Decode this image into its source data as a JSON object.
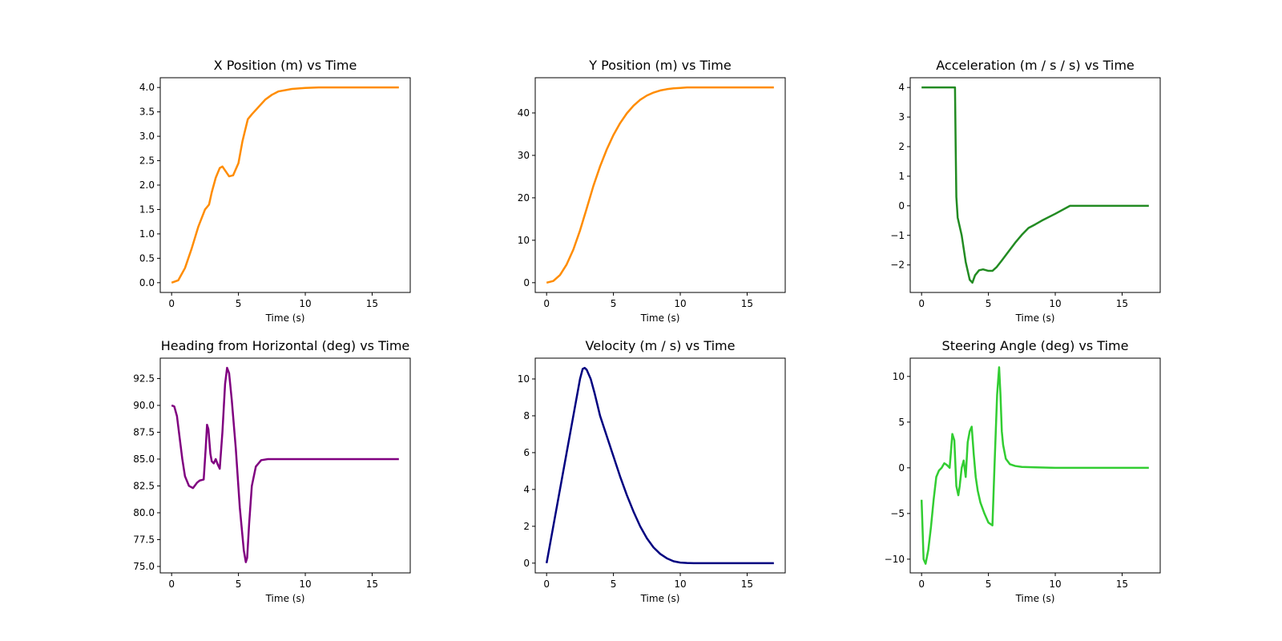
{
  "chart_data": [
    {
      "type": "line",
      "title": "X Position (m) vs Time",
      "xlabel": "Time (s)",
      "ylabel": "",
      "xlim": [
        -0.85,
        17.85
      ],
      "ylim": [
        -0.2,
        4.2
      ],
      "xticks": [
        0,
        5,
        10,
        15
      ],
      "yticks": [
        0.0,
        0.5,
        1.0,
        1.5,
        2.0,
        2.5,
        3.0,
        3.5,
        4.0
      ],
      "ytick_decimals": 1,
      "color": "#ff8c00",
      "x": [
        0,
        0.5,
        1,
        1.5,
        2,
        2.5,
        2.8,
        3.0,
        3.3,
        3.6,
        3.8,
        4.0,
        4.3,
        4.6,
        5.0,
        5.3,
        5.7,
        6.0,
        6.5,
        7,
        7.5,
        8,
        9,
        10,
        11,
        12,
        14,
        17
      ],
      "y": [
        0,
        0.05,
        0.3,
        0.7,
        1.15,
        1.5,
        1.6,
        1.85,
        2.15,
        2.35,
        2.38,
        2.3,
        2.18,
        2.2,
        2.45,
        2.9,
        3.35,
        3.45,
        3.6,
        3.75,
        3.85,
        3.92,
        3.97,
        3.99,
        4.0,
        4.0,
        4.0,
        4.0
      ]
    },
    {
      "type": "line",
      "title": "Y Position (m) vs Time",
      "xlabel": "Time (s)",
      "ylabel": "",
      "xlim": [
        -0.85,
        17.85
      ],
      "ylim": [
        -2.3,
        48.3
      ],
      "xticks": [
        0,
        5,
        10,
        15
      ],
      "yticks": [
        0,
        10,
        20,
        30,
        40
      ],
      "ytick_decimals": 0,
      "color": "#ff8c00",
      "x": [
        0,
        0.5,
        1,
        1.5,
        2,
        2.5,
        3,
        3.5,
        4,
        4.5,
        5,
        5.5,
        6,
        6.5,
        7,
        7.5,
        8,
        8.5,
        9,
        9.5,
        10,
        10.5,
        11,
        12,
        14,
        17
      ],
      "y": [
        0,
        0.4,
        1.8,
        4.3,
        7.8,
        12.3,
        17.5,
        22.8,
        27.4,
        31.4,
        34.8,
        37.6,
        39.9,
        41.7,
        43.1,
        44.1,
        44.8,
        45.3,
        45.6,
        45.8,
        45.9,
        46.0,
        46.0,
        46.0,
        46.0,
        46.0
      ]
    },
    {
      "type": "line",
      "title": "Acceleration (m / s / s) vs Time",
      "xlabel": "Time (s)",
      "ylabel": "",
      "xlim": [
        -0.85,
        17.85
      ],
      "ylim": [
        -2.93,
        4.33
      ],
      "xticks": [
        0,
        5,
        10,
        15
      ],
      "yticks": [
        -2,
        -1,
        0,
        1,
        2,
        3,
        4
      ],
      "ytick_decimals": 0,
      "color": "#228b22",
      "x": [
        0,
        2.5,
        2.55,
        2.6,
        2.7,
        3.0,
        3.3,
        3.6,
        3.8,
        4.0,
        4.3,
        4.6,
        5.0,
        5.3,
        5.6,
        6.0,
        6.5,
        7.0,
        7.5,
        8.0,
        8.5,
        9.0,
        10.0,
        11.1,
        12.0,
        14.0,
        17.0
      ],
      "y": [
        4.0,
        4.0,
        2.0,
        0.3,
        -0.4,
        -1.0,
        -1.9,
        -2.5,
        -2.6,
        -2.35,
        -2.18,
        -2.15,
        -2.2,
        -2.2,
        -2.08,
        -1.85,
        -1.55,
        -1.25,
        -0.98,
        -0.75,
        -0.63,
        -0.5,
        -0.27,
        0.0,
        0.0,
        0.0,
        0.0
      ]
    },
    {
      "type": "line",
      "title": "Heading from Horizontal (deg) vs Time",
      "xlabel": "Time (s)",
      "ylabel": "",
      "xlim": [
        -0.85,
        17.85
      ],
      "ylim": [
        74.4,
        94.4
      ],
      "xticks": [
        0,
        5,
        10,
        15
      ],
      "yticks": [
        75.0,
        77.5,
        80.0,
        82.5,
        85.0,
        87.5,
        90.0,
        92.5
      ],
      "ytick_decimals": 1,
      "color": "#800080",
      "x": [
        0,
        0.2,
        0.4,
        0.6,
        0.8,
        1.0,
        1.3,
        1.6,
        1.9,
        2.1,
        2.4,
        2.55,
        2.65,
        2.75,
        2.9,
        3.0,
        3.15,
        3.3,
        3.45,
        3.6,
        3.8,
        4.0,
        4.15,
        4.3,
        4.5,
        4.8,
        5.1,
        5.4,
        5.55,
        5.65,
        5.8,
        6.0,
        6.3,
        6.7,
        7.2,
        8,
        10,
        17
      ],
      "y": [
        90.0,
        89.9,
        89.0,
        87.0,
        85.0,
        83.4,
        82.5,
        82.3,
        82.8,
        83.0,
        83.1,
        86.0,
        88.2,
        87.8,
        85.5,
        84.8,
        84.6,
        85.0,
        84.5,
        84.1,
        87.5,
        92.0,
        93.5,
        93.0,
        90.5,
        86.0,
        80.5,
        76.5,
        75.4,
        75.8,
        79.0,
        82.5,
        84.3,
        84.9,
        85.0,
        85.0,
        85.0,
        85.0
      ]
    },
    {
      "type": "line",
      "title": "Velocity (m / s) vs Time",
      "xlabel": "Time (s)",
      "ylabel": "",
      "xlim": [
        -0.85,
        17.85
      ],
      "ylim": [
        -0.53,
        11.13
      ],
      "xticks": [
        0,
        5,
        10,
        15
      ],
      "yticks": [
        0,
        2,
        4,
        6,
        8,
        10
      ],
      "ytick_decimals": 0,
      "color": "#000080",
      "x": [
        0,
        0.5,
        1,
        1.5,
        2,
        2.5,
        2.7,
        2.85,
        3.0,
        3.3,
        3.6,
        4.0,
        4.5,
        5,
        5.5,
        6,
        6.5,
        7,
        7.5,
        8,
        8.5,
        9,
        9.5,
        10,
        10.5,
        11,
        12,
        14,
        17
      ],
      "y": [
        0,
        2.0,
        4.0,
        6.0,
        8.0,
        10.0,
        10.55,
        10.6,
        10.5,
        10.0,
        9.2,
        8.0,
        6.9,
        5.8,
        4.7,
        3.7,
        2.8,
        2.0,
        1.35,
        0.85,
        0.5,
        0.26,
        0.1,
        0.03,
        0.01,
        0,
        0,
        0,
        0
      ]
    },
    {
      "type": "line",
      "title": "Steering Angle (deg) vs Time",
      "xlabel": "Time (s)",
      "ylabel": "",
      "xlim": [
        -0.85,
        17.85
      ],
      "ylim": [
        -11.5,
        12.0
      ],
      "xticks": [
        0,
        5,
        10,
        15
      ],
      "yticks": [
        -10,
        -5,
        0,
        5,
        10
      ],
      "ytick_decimals": 0,
      "color": "#32cd32",
      "x": [
        0,
        0.15,
        0.3,
        0.5,
        0.7,
        0.9,
        1.1,
        1.3,
        1.5,
        1.7,
        1.9,
        2.1,
        2.3,
        2.45,
        2.6,
        2.75,
        2.85,
        3.0,
        3.15,
        3.3,
        3.45,
        3.6,
        3.75,
        3.9,
        4.05,
        4.2,
        4.4,
        4.7,
        5.0,
        5.3,
        5.45,
        5.55,
        5.65,
        5.8,
        5.9,
        6.0,
        6.1,
        6.3,
        6.6,
        7.0,
        7.5,
        8.5,
        10,
        12,
        17
      ],
      "y": [
        -3.5,
        -10.0,
        -10.5,
        -9.0,
        -6.5,
        -3.5,
        -1.0,
        -0.3,
        0.0,
        0.5,
        0.3,
        0.0,
        3.7,
        3.0,
        -2.0,
        -3.0,
        -2.0,
        0.0,
        0.8,
        -1.0,
        2.8,
        4.0,
        4.5,
        1.5,
        -1.0,
        -2.5,
        -3.8,
        -5.0,
        -6.0,
        -6.3,
        0.0,
        4.0,
        8.0,
        11.0,
        8.0,
        4.0,
        2.5,
        1.0,
        0.4,
        0.2,
        0.1,
        0.05,
        0.0,
        0.0,
        0.0
      ]
    }
  ]
}
